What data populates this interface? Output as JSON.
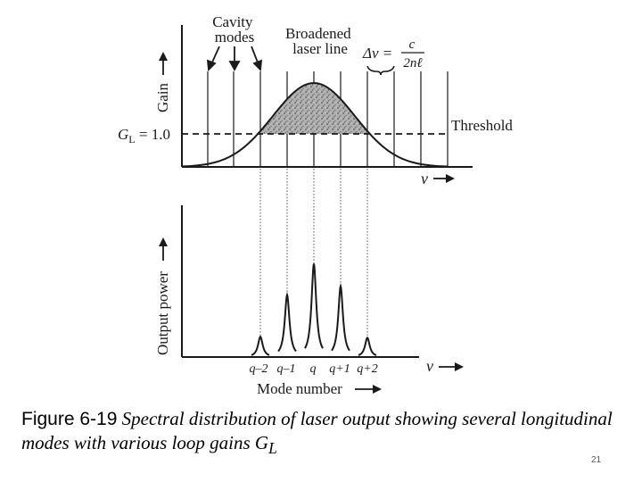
{
  "top_plot": {
    "cavity_label_line1": "Cavity",
    "cavity_label_line2": "modes",
    "broadened_line1": "Broadened",
    "broadened_line2": "laser line",
    "delta_nu": "Δν =",
    "delta_num": "c",
    "delta_den": "2nℓ",
    "threshold_label": "Threshold",
    "gain_label": "Gain",
    "gl_label": "G",
    "gl_sub": "L",
    "gl_value": " = 1.0",
    "nu_label": "ν"
  },
  "bottom_plot": {
    "ylabel": "Output power",
    "nu_label": "ν",
    "xlabel": "Mode number",
    "mode_labels": [
      "q–2",
      "q–1",
      "q",
      "q+1",
      "q+2"
    ],
    "relative_peak_heights": [
      0.19,
      0.58,
      0.87,
      0.66,
      0.18
    ]
  },
  "colors": {
    "stroke": "#1a1a1a",
    "gain_fill": "#a9a9a9",
    "text": "#1a1a1a"
  },
  "caption": {
    "figure_label": "Figure 6-19",
    "text": "Spectral distribution of laser output showing several longitudinal modes with various loop gains G",
    "sub": "L"
  },
  "page_number": "21"
}
